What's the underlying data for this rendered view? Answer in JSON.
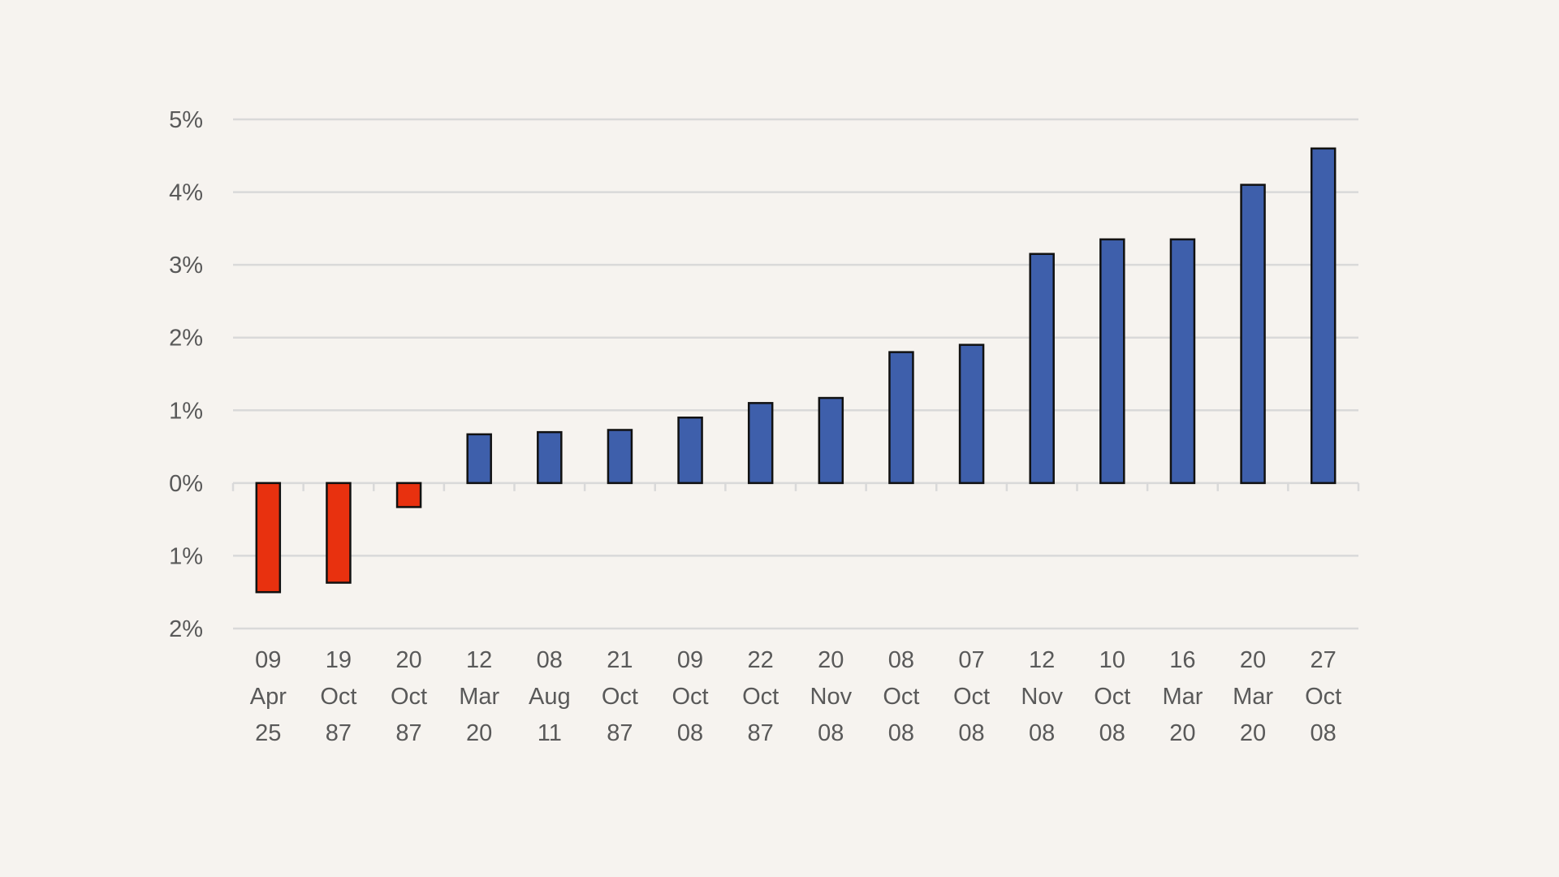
{
  "chart_data": {
    "type": "bar",
    "title": "",
    "xlabel": "",
    "ylabel": "",
    "ylim": [
      -2,
      5
    ],
    "y_ticks": [
      {
        "value": 5,
        "label": "5%"
      },
      {
        "value": 4,
        "label": "4%"
      },
      {
        "value": 3,
        "label": "3%"
      },
      {
        "value": 2,
        "label": "2%"
      },
      {
        "value": 1,
        "label": "1%"
      },
      {
        "value": 0,
        "label": "0%"
      },
      {
        "value": -1,
        "label": "1%"
      },
      {
        "value": -2,
        "label": "2%"
      }
    ],
    "categories": [
      [
        "09",
        "Apr",
        "25"
      ],
      [
        "19",
        "Oct",
        "87"
      ],
      [
        "20",
        "Oct",
        "87"
      ],
      [
        "12",
        "Mar",
        "20"
      ],
      [
        "08",
        "Aug",
        "11"
      ],
      [
        "21",
        "Oct",
        "87"
      ],
      [
        "09",
        "Oct",
        "08"
      ],
      [
        "22",
        "Oct",
        "87"
      ],
      [
        "20",
        "Nov",
        "08"
      ],
      [
        "08",
        "Oct",
        "08"
      ],
      [
        "07",
        "Oct",
        "08"
      ],
      [
        "12",
        "Nov",
        "08"
      ],
      [
        "10",
        "Oct",
        "08"
      ],
      [
        "16",
        "Mar",
        "20"
      ],
      [
        "20",
        "Mar",
        "20"
      ],
      [
        "27",
        "Oct",
        "08"
      ]
    ],
    "values": [
      -1.5,
      -1.37,
      -0.33,
      0.67,
      0.7,
      0.73,
      0.9,
      1.1,
      1.17,
      1.8,
      1.9,
      3.15,
      3.35,
      3.35,
      4.1,
      4.6
    ],
    "grid": true,
    "legend": "none",
    "colors": {
      "negative": "#e8310f",
      "positive": "#3e5fab",
      "grid": "#d9d9d9",
      "text": "#595959",
      "background": "#f6f3ef"
    }
  }
}
